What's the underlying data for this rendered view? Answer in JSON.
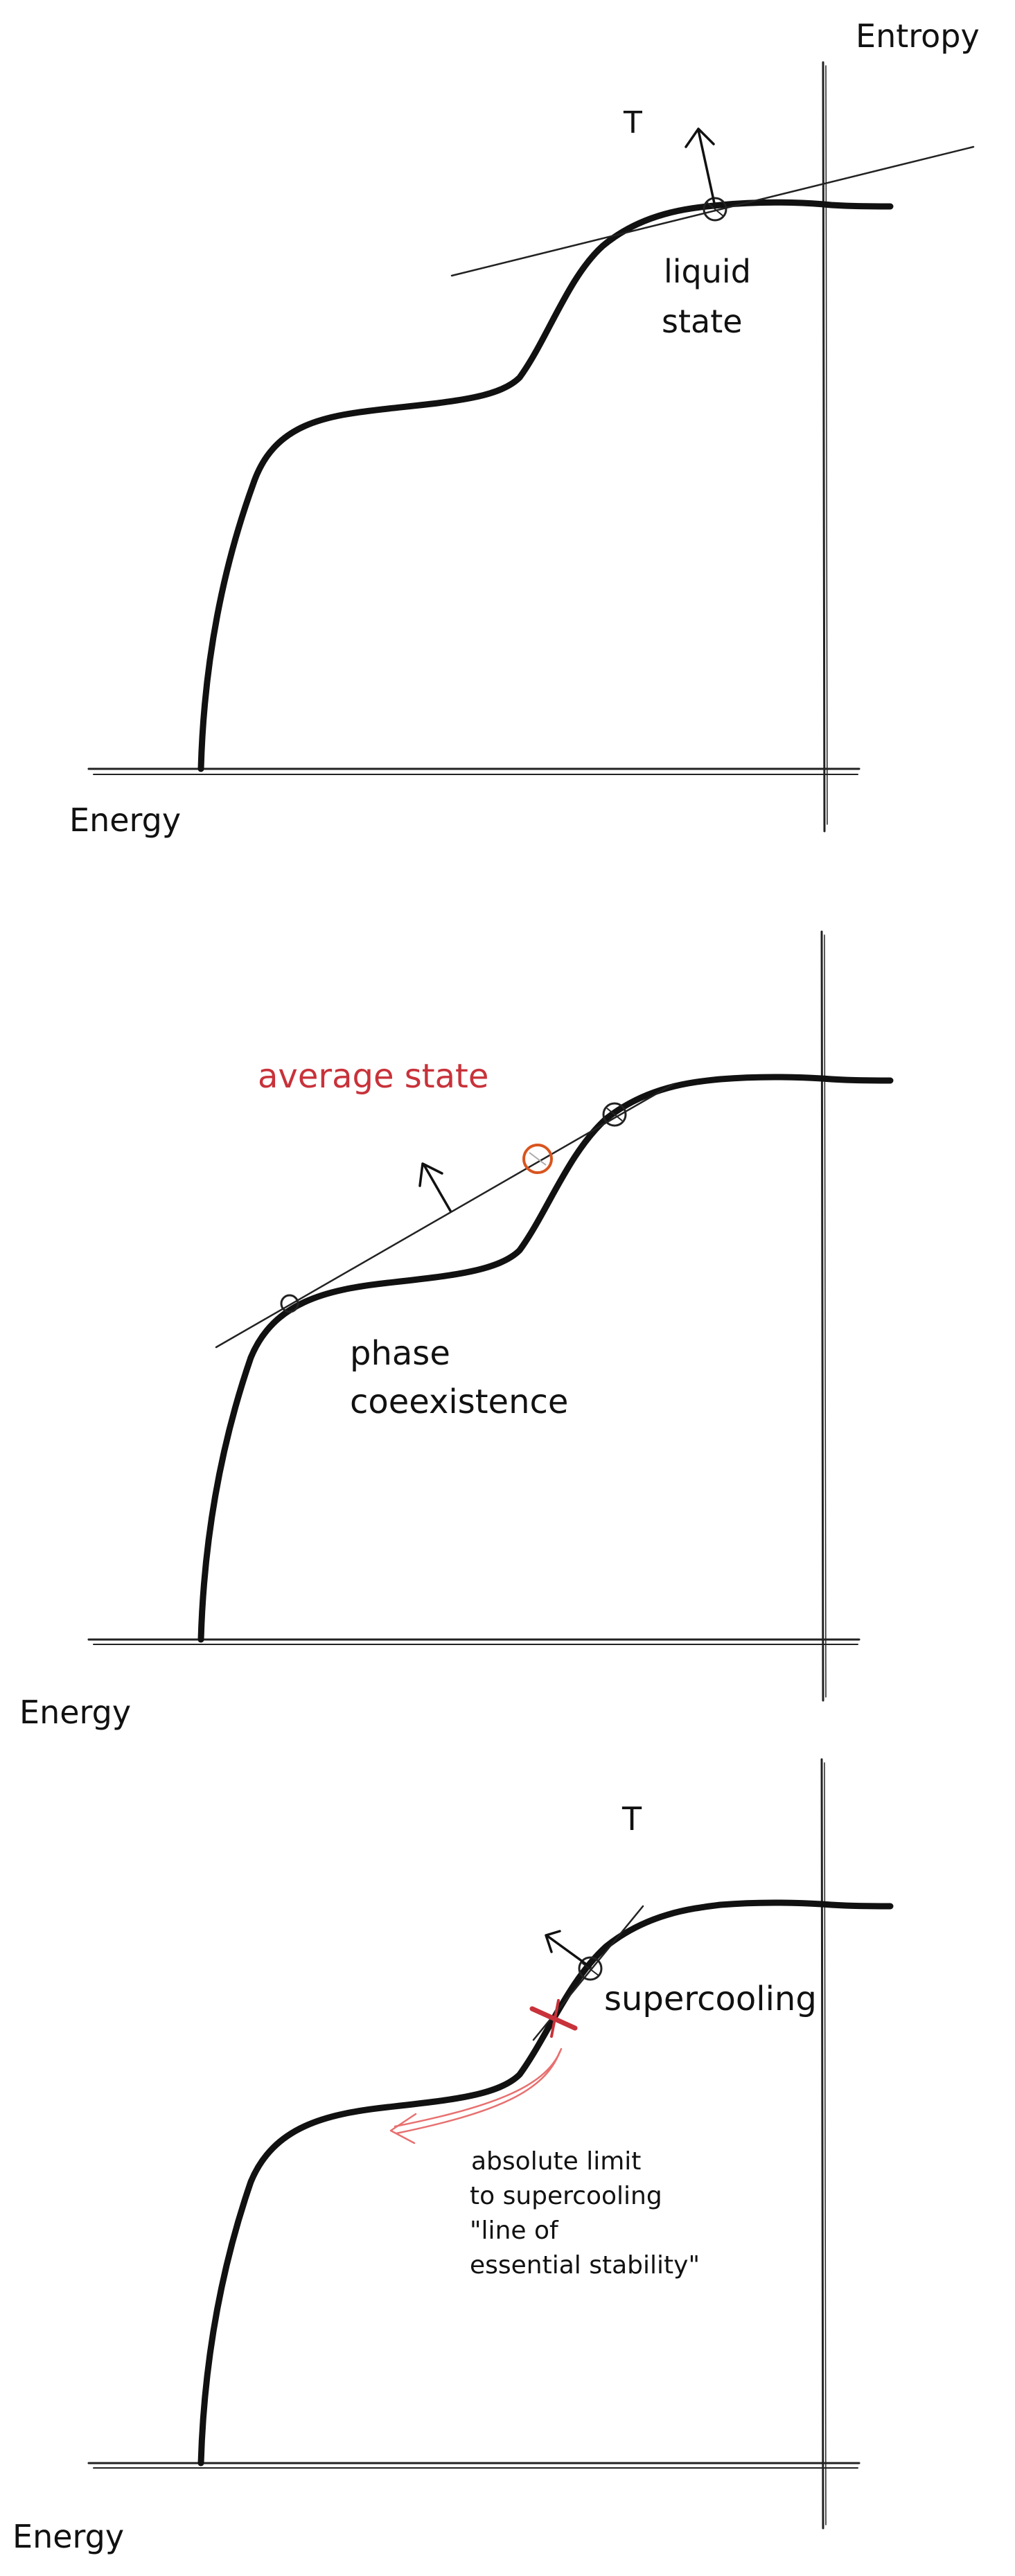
{
  "panel1": {
    "y_axis_label": "Entropy",
    "x_axis_label": "Energy",
    "temperature_label": "T",
    "state_label_line1": "liquid",
    "state_label_line2": "state"
  },
  "panel2": {
    "x_axis_label": "Energy",
    "average_label": "average state",
    "coexistence_line1": "phase",
    "coexistence_line2": "coeexistence"
  },
  "panel3": {
    "x_axis_label": "Energy",
    "temperature_label": "T",
    "supercooling_label": "supercooling",
    "limit_line1": "absolute limit",
    "limit_line2": "to supercooling",
    "limit_line3": "\"line of",
    "limit_line4": "essential stability\""
  },
  "colors": {
    "ink": "#111111",
    "red": "#c8323a",
    "orange": "#d9541e",
    "light_red": "#e87070"
  }
}
